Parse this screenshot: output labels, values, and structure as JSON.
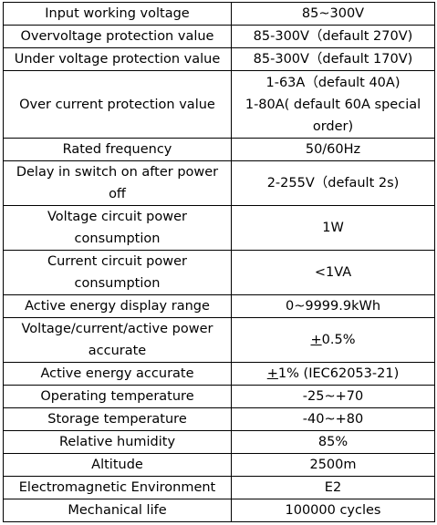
{
  "rows": [
    {
      "param": [
        "Input working voltage"
      ],
      "value": [
        "85~300V"
      ]
    },
    {
      "param": [
        "Overvoltage protection value"
      ],
      "value": [
        "85-300V（default 270V)"
      ]
    },
    {
      "param": [
        "Under voltage  protection  value"
      ],
      "value": [
        "85-300V（default 170V)"
      ]
    },
    {
      "param": [
        "Over current  protection  value"
      ],
      "value": [
        "1-63A（default 40A)",
        "1-80A( default 60A special",
        "order)"
      ]
    },
    {
      "param": [
        "Rated frequency"
      ],
      "value": [
        "50/60Hz"
      ]
    },
    {
      "param": [
        "Delay in switch on after power",
        "off"
      ],
      "value": [
        "2-255V（default 2s)"
      ]
    },
    {
      "param": [
        "Voltage circuit power",
        "consumption"
      ],
      "value": [
        "1W"
      ]
    },
    {
      "param": [
        "Current circuit power",
        "consumption"
      ],
      "value": [
        "<1VA"
      ]
    },
    {
      "param": [
        "Active energy display range"
      ],
      "value": [
        "0~9999.9kWh"
      ]
    },
    {
      "param": [
        "Voltage/current/active power",
        "accurate"
      ],
      "value_pm": "+",
      "value_rest": "0.5%"
    },
    {
      "param": [
        "Active energy accurate"
      ],
      "value_pm": "+",
      "value_rest": "1%  (IEC62053-21)"
    },
    {
      "param": [
        "Operating temperature"
      ],
      "value": [
        "-25~+70"
      ]
    },
    {
      "param": [
        "Storage  temperature"
      ],
      "value": [
        "-40~+80"
      ]
    },
    {
      "param": [
        "Relative humidity"
      ],
      "value": [
        "85%"
      ]
    },
    {
      "param": [
        "Altitude"
      ],
      "value": [
        "2500m"
      ]
    },
    {
      "param": [
        "Electromagnetic Environment"
      ],
      "value": [
        "E2"
      ]
    },
    {
      "param": [
        "Mechanical life"
      ],
      "value": [
        "100000  cycles"
      ]
    }
  ]
}
